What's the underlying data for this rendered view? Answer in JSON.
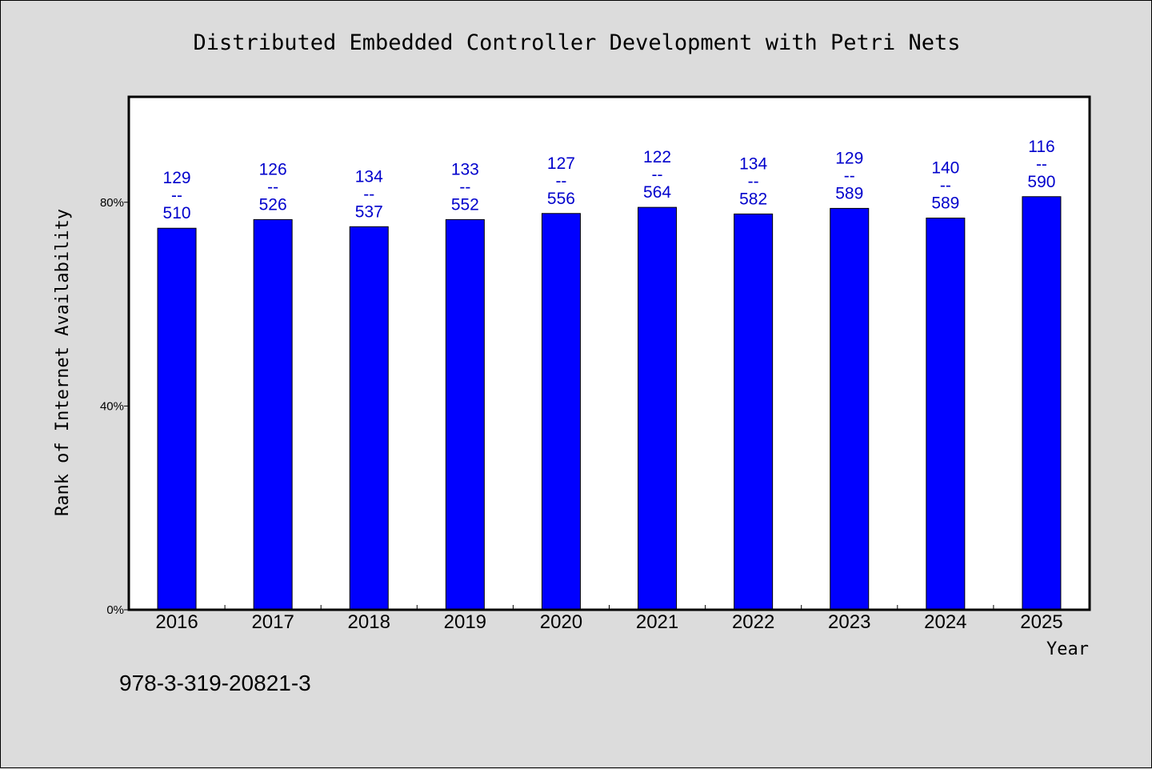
{
  "chart_data": {
    "type": "bar",
    "title": "Distributed Embedded Controller Development with Petri Nets",
    "xlabel": "Year",
    "ylabel": "Rank of Internet Availability",
    "categories": [
      "2016",
      "2017",
      "2018",
      "2019",
      "2020",
      "2021",
      "2022",
      "2023",
      "2024",
      "2025"
    ],
    "values": [
      74.9,
      76.6,
      75.2,
      76.6,
      77.8,
      79.0,
      77.7,
      78.8,
      76.9,
      81.1
    ],
    "labels": [
      {
        "top": "129",
        "sep": "--",
        "bottom": "510"
      },
      {
        "top": "126",
        "sep": "--",
        "bottom": "526"
      },
      {
        "top": "134",
        "sep": "--",
        "bottom": "537"
      },
      {
        "top": "133",
        "sep": "--",
        "bottom": "552"
      },
      {
        "top": "127",
        "sep": "--",
        "bottom": "556"
      },
      {
        "top": "122",
        "sep": "--",
        "bottom": "564"
      },
      {
        "top": "134",
        "sep": "--",
        "bottom": "582"
      },
      {
        "top": "129",
        "sep": "--",
        "bottom": "589"
      },
      {
        "top": "140",
        "sep": "--",
        "bottom": "589"
      },
      {
        "top": "116",
        "sep": "--",
        "bottom": "590"
      }
    ],
    "yticks": [
      {
        "value": 0,
        "label": "0%"
      },
      {
        "value": 40,
        "label": "40%"
      },
      {
        "value": 80,
        "label": "80%"
      }
    ],
    "ylim": [
      0,
      100.7
    ],
    "grid": false,
    "bar_color": "#0000ff",
    "label_color": "#0000cc"
  },
  "footer": {
    "isbn": "978-3-319-20821-3"
  }
}
